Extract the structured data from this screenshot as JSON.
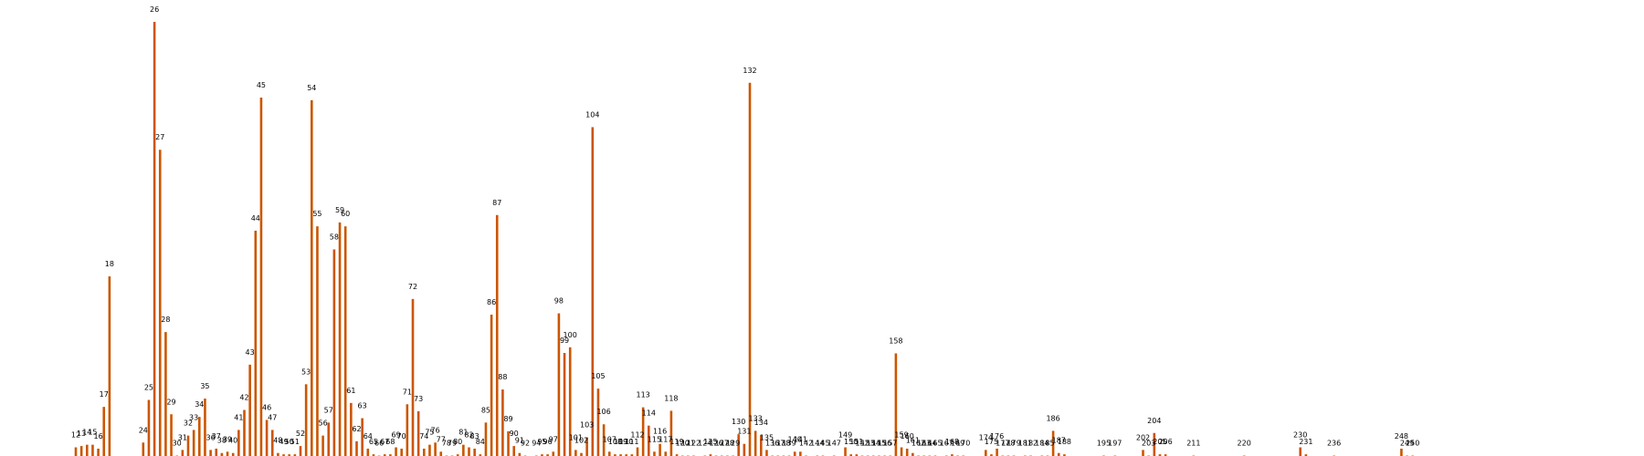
{
  "colors": {
    "bar": "#cc5500",
    "background": "#ffffff",
    "label": "#000000"
  },
  "chart_data": {
    "type": "bar",
    "title": "",
    "xlabel": "",
    "ylabel": "",
    "axes_visible": false,
    "grid": false,
    "ylim": [
      0,
      1.08
    ],
    "xlim": [
      10,
      261
    ],
    "bars": [
      {
        "x": 12,
        "v": 0.022
      },
      {
        "x": 13,
        "v": 0.025
      },
      {
        "x": 14,
        "v": 0.028
      },
      {
        "x": 15,
        "v": 0.028
      },
      {
        "x": 16,
        "v": 0.019
      },
      {
        "x": 17,
        "v": 0.115
      },
      {
        "x": 18,
        "v": 0.415
      },
      {
        "x": 24,
        "v": 0.033
      },
      {
        "x": 25,
        "v": 0.131
      },
      {
        "x": 26,
        "v": 1.0
      },
      {
        "x": 27,
        "v": 0.706
      },
      {
        "x": 28,
        "v": 0.287
      },
      {
        "x": 29,
        "v": 0.098
      },
      {
        "x": 30,
        "v": 0.003
      },
      {
        "x": 31,
        "v": 0.016
      },
      {
        "x": 32,
        "v": 0.049
      },
      {
        "x": 33,
        "v": 0.062
      },
      {
        "x": 34,
        "v": 0.092
      },
      {
        "x": 35,
        "v": 0.134
      },
      {
        "x": 36,
        "v": 0.016
      },
      {
        "x": 37,
        "v": 0.019
      },
      {
        "x": 38,
        "v": 0.009
      },
      {
        "x": 39,
        "v": 0.012
      },
      {
        "x": 40,
        "v": 0.009
      },
      {
        "x": 41,
        "v": 0.062
      },
      {
        "x": 42,
        "v": 0.108
      },
      {
        "x": 43,
        "v": 0.212
      },
      {
        "x": 44,
        "v": 0.52
      },
      {
        "x": 45,
        "v": 0.826
      },
      {
        "x": 46,
        "v": 0.085
      },
      {
        "x": 47,
        "v": 0.062
      },
      {
        "x": 48,
        "v": 0.009
      },
      {
        "x": 49,
        "v": 0.006
      },
      {
        "x": 50,
        "v": 0.006
      },
      {
        "x": 51,
        "v": 0.006
      },
      {
        "x": 52,
        "v": 0.025
      },
      {
        "x": 53,
        "v": 0.167
      },
      {
        "x": 54,
        "v": 0.82
      },
      {
        "x": 55,
        "v": 0.53
      },
      {
        "x": 56,
        "v": 0.049
      },
      {
        "x": 57,
        "v": 0.079
      },
      {
        "x": 58,
        "v": 0.477
      },
      {
        "x": 59,
        "v": 0.539
      },
      {
        "x": 60,
        "v": 0.53
      },
      {
        "x": 61,
        "v": 0.124
      },
      {
        "x": 62,
        "v": 0.036
      },
      {
        "x": 63,
        "v": 0.089
      },
      {
        "x": 64,
        "v": 0.019
      },
      {
        "x": 65,
        "v": 0.006
      },
      {
        "x": 66,
        "v": 0.003
      },
      {
        "x": 67,
        "v": 0.006
      },
      {
        "x": 68,
        "v": 0.006
      },
      {
        "x": 69,
        "v": 0.022
      },
      {
        "x": 70,
        "v": 0.019
      },
      {
        "x": 71,
        "v": 0.121
      },
      {
        "x": 72,
        "v": 0.363
      },
      {
        "x": 73,
        "v": 0.105
      },
      {
        "x": 74,
        "v": 0.019
      },
      {
        "x": 75,
        "v": 0.028
      },
      {
        "x": 76,
        "v": 0.033
      },
      {
        "x": 77,
        "v": 0.012
      },
      {
        "x": 78,
        "v": 0.003
      },
      {
        "x": 79,
        "v": 0.003
      },
      {
        "x": 80,
        "v": 0.006
      },
      {
        "x": 81,
        "v": 0.028
      },
      {
        "x": 82,
        "v": 0.022
      },
      {
        "x": 83,
        "v": 0.019
      },
      {
        "x": 84,
        "v": 0.006
      },
      {
        "x": 85,
        "v": 0.079
      },
      {
        "x": 86,
        "v": 0.327
      },
      {
        "x": 87,
        "v": 0.556
      },
      {
        "x": 88,
        "v": 0.155
      },
      {
        "x": 89,
        "v": 0.059
      },
      {
        "x": 90,
        "v": 0.025
      },
      {
        "x": 91,
        "v": 0.009
      },
      {
        "x": 92,
        "v": 0.003
      },
      {
        "x": 94,
        "v": 0.003
      },
      {
        "x": 95,
        "v": 0.006
      },
      {
        "x": 96,
        "v": 0.006
      },
      {
        "x": 97,
        "v": 0.012
      },
      {
        "x": 98,
        "v": 0.33
      },
      {
        "x": 99,
        "v": 0.239
      },
      {
        "x": 100,
        "v": 0.252
      },
      {
        "x": 101,
        "v": 0.016
      },
      {
        "x": 102,
        "v": 0.009
      },
      {
        "x": 103,
        "v": 0.045
      },
      {
        "x": 104,
        "v": 0.758
      },
      {
        "x": 105,
        "v": 0.157
      },
      {
        "x": 106,
        "v": 0.075
      },
      {
        "x": 107,
        "v": 0.012
      },
      {
        "x": 108,
        "v": 0.006
      },
      {
        "x": 109,
        "v": 0.006
      },
      {
        "x": 110,
        "v": 0.006
      },
      {
        "x": 111,
        "v": 0.006
      },
      {
        "x": 112,
        "v": 0.022
      },
      {
        "x": 113,
        "v": 0.114
      },
      {
        "x": 114,
        "v": 0.072
      },
      {
        "x": 115,
        "v": 0.012
      },
      {
        "x": 116,
        "v": 0.03
      },
      {
        "x": 117,
        "v": 0.012
      },
      {
        "x": 118,
        "v": 0.106
      },
      {
        "x": 119,
        "v": 0.006
      },
      {
        "x": 120,
        "v": 0.003
      },
      {
        "x": 121,
        "v": 0.003
      },
      {
        "x": 122,
        "v": 0.003
      },
      {
        "x": 124,
        "v": 0.003
      },
      {
        "x": 125,
        "v": 0.006
      },
      {
        "x": 126,
        "v": 0.003
      },
      {
        "x": 127,
        "v": 0.003
      },
      {
        "x": 128,
        "v": 0.003
      },
      {
        "x": 129,
        "v": 0.003
      },
      {
        "x": 130,
        "v": 0.052
      },
      {
        "x": 131,
        "v": 0.03
      },
      {
        "x": 132,
        "v": 0.86
      },
      {
        "x": 133,
        "v": 0.06
      },
      {
        "x": 134,
        "v": 0.05
      },
      {
        "x": 135,
        "v": 0.016
      },
      {
        "x": 136,
        "v": 0.003
      },
      {
        "x": 137,
        "v": 0.003
      },
      {
        "x": 138,
        "v": 0.003
      },
      {
        "x": 139,
        "v": 0.003
      },
      {
        "x": 140,
        "v": 0.012
      },
      {
        "x": 141,
        "v": 0.012
      },
      {
        "x": 142,
        "v": 0.003
      },
      {
        "x": 144,
        "v": 0.003
      },
      {
        "x": 145,
        "v": 0.003
      },
      {
        "x": 147,
        "v": 0.003
      },
      {
        "x": 149,
        "v": 0.022
      },
      {
        "x": 150,
        "v": 0.006
      },
      {
        "x": 151,
        "v": 0.006
      },
      {
        "x": 152,
        "v": 0.003
      },
      {
        "x": 153,
        "v": 0.003
      },
      {
        "x": 154,
        "v": 0.003
      },
      {
        "x": 155,
        "v": 0.003
      },
      {
        "x": 156,
        "v": 0.003
      },
      {
        "x": 157,
        "v": 0.003
      },
      {
        "x": 158,
        "v": 0.238
      },
      {
        "x": 159,
        "v": 0.022
      },
      {
        "x": 160,
        "v": 0.019
      },
      {
        "x": 161,
        "v": 0.009
      },
      {
        "x": 162,
        "v": 0.003
      },
      {
        "x": 163,
        "v": 0.003
      },
      {
        "x": 164,
        "v": 0.003
      },
      {
        "x": 165,
        "v": 0.003
      },
      {
        "x": 167,
        "v": 0.003
      },
      {
        "x": 168,
        "v": 0.006
      },
      {
        "x": 169,
        "v": 0.003
      },
      {
        "x": 170,
        "v": 0.003
      },
      {
        "x": 174,
        "v": 0.016
      },
      {
        "x": 175,
        "v": 0.006
      },
      {
        "x": 176,
        "v": 0.019
      },
      {
        "x": 177,
        "v": 0.003
      },
      {
        "x": 178,
        "v": 0.003
      },
      {
        "x": 179,
        "v": 0.003
      },
      {
        "x": 181,
        "v": 0.003
      },
      {
        "x": 182,
        "v": 0.003
      },
      {
        "x": 184,
        "v": 0.003
      },
      {
        "x": 185,
        "v": 0.003
      },
      {
        "x": 186,
        "v": 0.06
      },
      {
        "x": 187,
        "v": 0.009
      },
      {
        "x": 188,
        "v": 0.006
      },
      {
        "x": 195,
        "v": 0.003
      },
      {
        "x": 197,
        "v": 0.003
      },
      {
        "x": 202,
        "v": 0.016
      },
      {
        "x": 203,
        "v": 0.003
      },
      {
        "x": 204,
        "v": 0.055
      },
      {
        "x": 205,
        "v": 0.006
      },
      {
        "x": 206,
        "v": 0.006
      },
      {
        "x": 211,
        "v": 0.003
      },
      {
        "x": 220,
        "v": 0.003
      },
      {
        "x": 230,
        "v": 0.022
      },
      {
        "x": 231,
        "v": 0.006
      },
      {
        "x": 236,
        "v": 0.003
      },
      {
        "x": 248,
        "v": 0.019
      },
      {
        "x": 249,
        "v": 0.003
      },
      {
        "x": 250,
        "v": 0.003
      }
    ]
  }
}
